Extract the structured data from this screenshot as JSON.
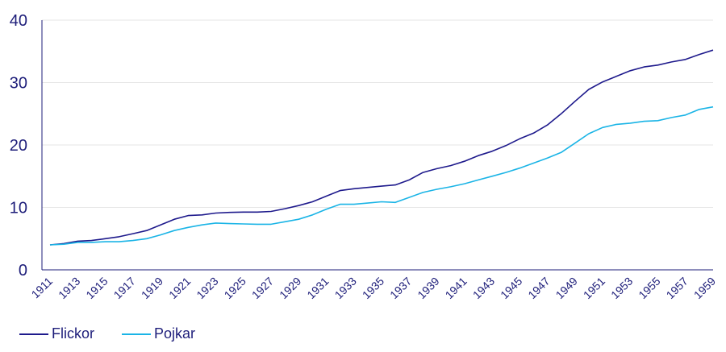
{
  "chart_data": {
    "type": "line",
    "title": "",
    "xlabel": "",
    "ylabel": "",
    "ylim": [
      0,
      40
    ],
    "yticks": [
      0,
      10,
      20,
      30,
      40
    ],
    "grid": true,
    "legend_position": "bottom-left",
    "x": [
      1911,
      1912,
      1913,
      1914,
      1915,
      1916,
      1917,
      1918,
      1919,
      1920,
      1921,
      1922,
      1923,
      1924,
      1925,
      1926,
      1927,
      1928,
      1929,
      1930,
      1931,
      1932,
      1933,
      1934,
      1935,
      1936,
      1937,
      1938,
      1939,
      1940,
      1941,
      1942,
      1943,
      1944,
      1945,
      1946,
      1947,
      1948,
      1949,
      1950,
      1951,
      1952,
      1953,
      1954,
      1955,
      1956,
      1957,
      1958,
      1959
    ],
    "xtick_labels": [
      "1911",
      "1913",
      "1915",
      "1917",
      "1919",
      "1921",
      "1923",
      "1925",
      "1927",
      "1929",
      "1931",
      "1933",
      "1935",
      "1937",
      "1939",
      "1941",
      "1943",
      "1945",
      "1947",
      "1949",
      "1951",
      "1953",
      "1955",
      "1957",
      "1959"
    ],
    "series": [
      {
        "name": "Flickor",
        "color": "#1e1a8c",
        "values": [
          4.0,
          4.2,
          4.6,
          4.7,
          5.0,
          5.3,
          5.8,
          6.3,
          7.2,
          8.1,
          8.7,
          8.8,
          9.1,
          9.2,
          9.25,
          9.25,
          9.35,
          9.8,
          10.3,
          10.9,
          11.8,
          12.7,
          13.0,
          13.2,
          13.4,
          13.6,
          14.4,
          15.6,
          16.2,
          16.7,
          17.4,
          18.3,
          19.0,
          19.9,
          21.0,
          21.9,
          23.2,
          25.0,
          27.0,
          28.9,
          30.1,
          31.0,
          31.9,
          32.5,
          32.8,
          33.3,
          33.7,
          34.5,
          35.2
        ]
      },
      {
        "name": "Pojkar",
        "color": "#1ab4e6",
        "values": [
          4.0,
          4.1,
          4.4,
          4.4,
          4.5,
          4.5,
          4.7,
          5.0,
          5.6,
          6.3,
          6.8,
          7.2,
          7.5,
          7.4,
          7.35,
          7.3,
          7.3,
          7.7,
          8.1,
          8.8,
          9.7,
          10.5,
          10.5,
          10.7,
          10.9,
          10.8,
          11.6,
          12.4,
          12.9,
          13.3,
          13.8,
          14.4,
          15.0,
          15.6,
          16.3,
          17.1,
          17.9,
          18.8,
          20.3,
          21.8,
          22.8,
          23.3,
          23.5,
          23.8,
          23.9,
          24.4,
          24.8,
          25.7,
          26.1
        ]
      }
    ]
  }
}
